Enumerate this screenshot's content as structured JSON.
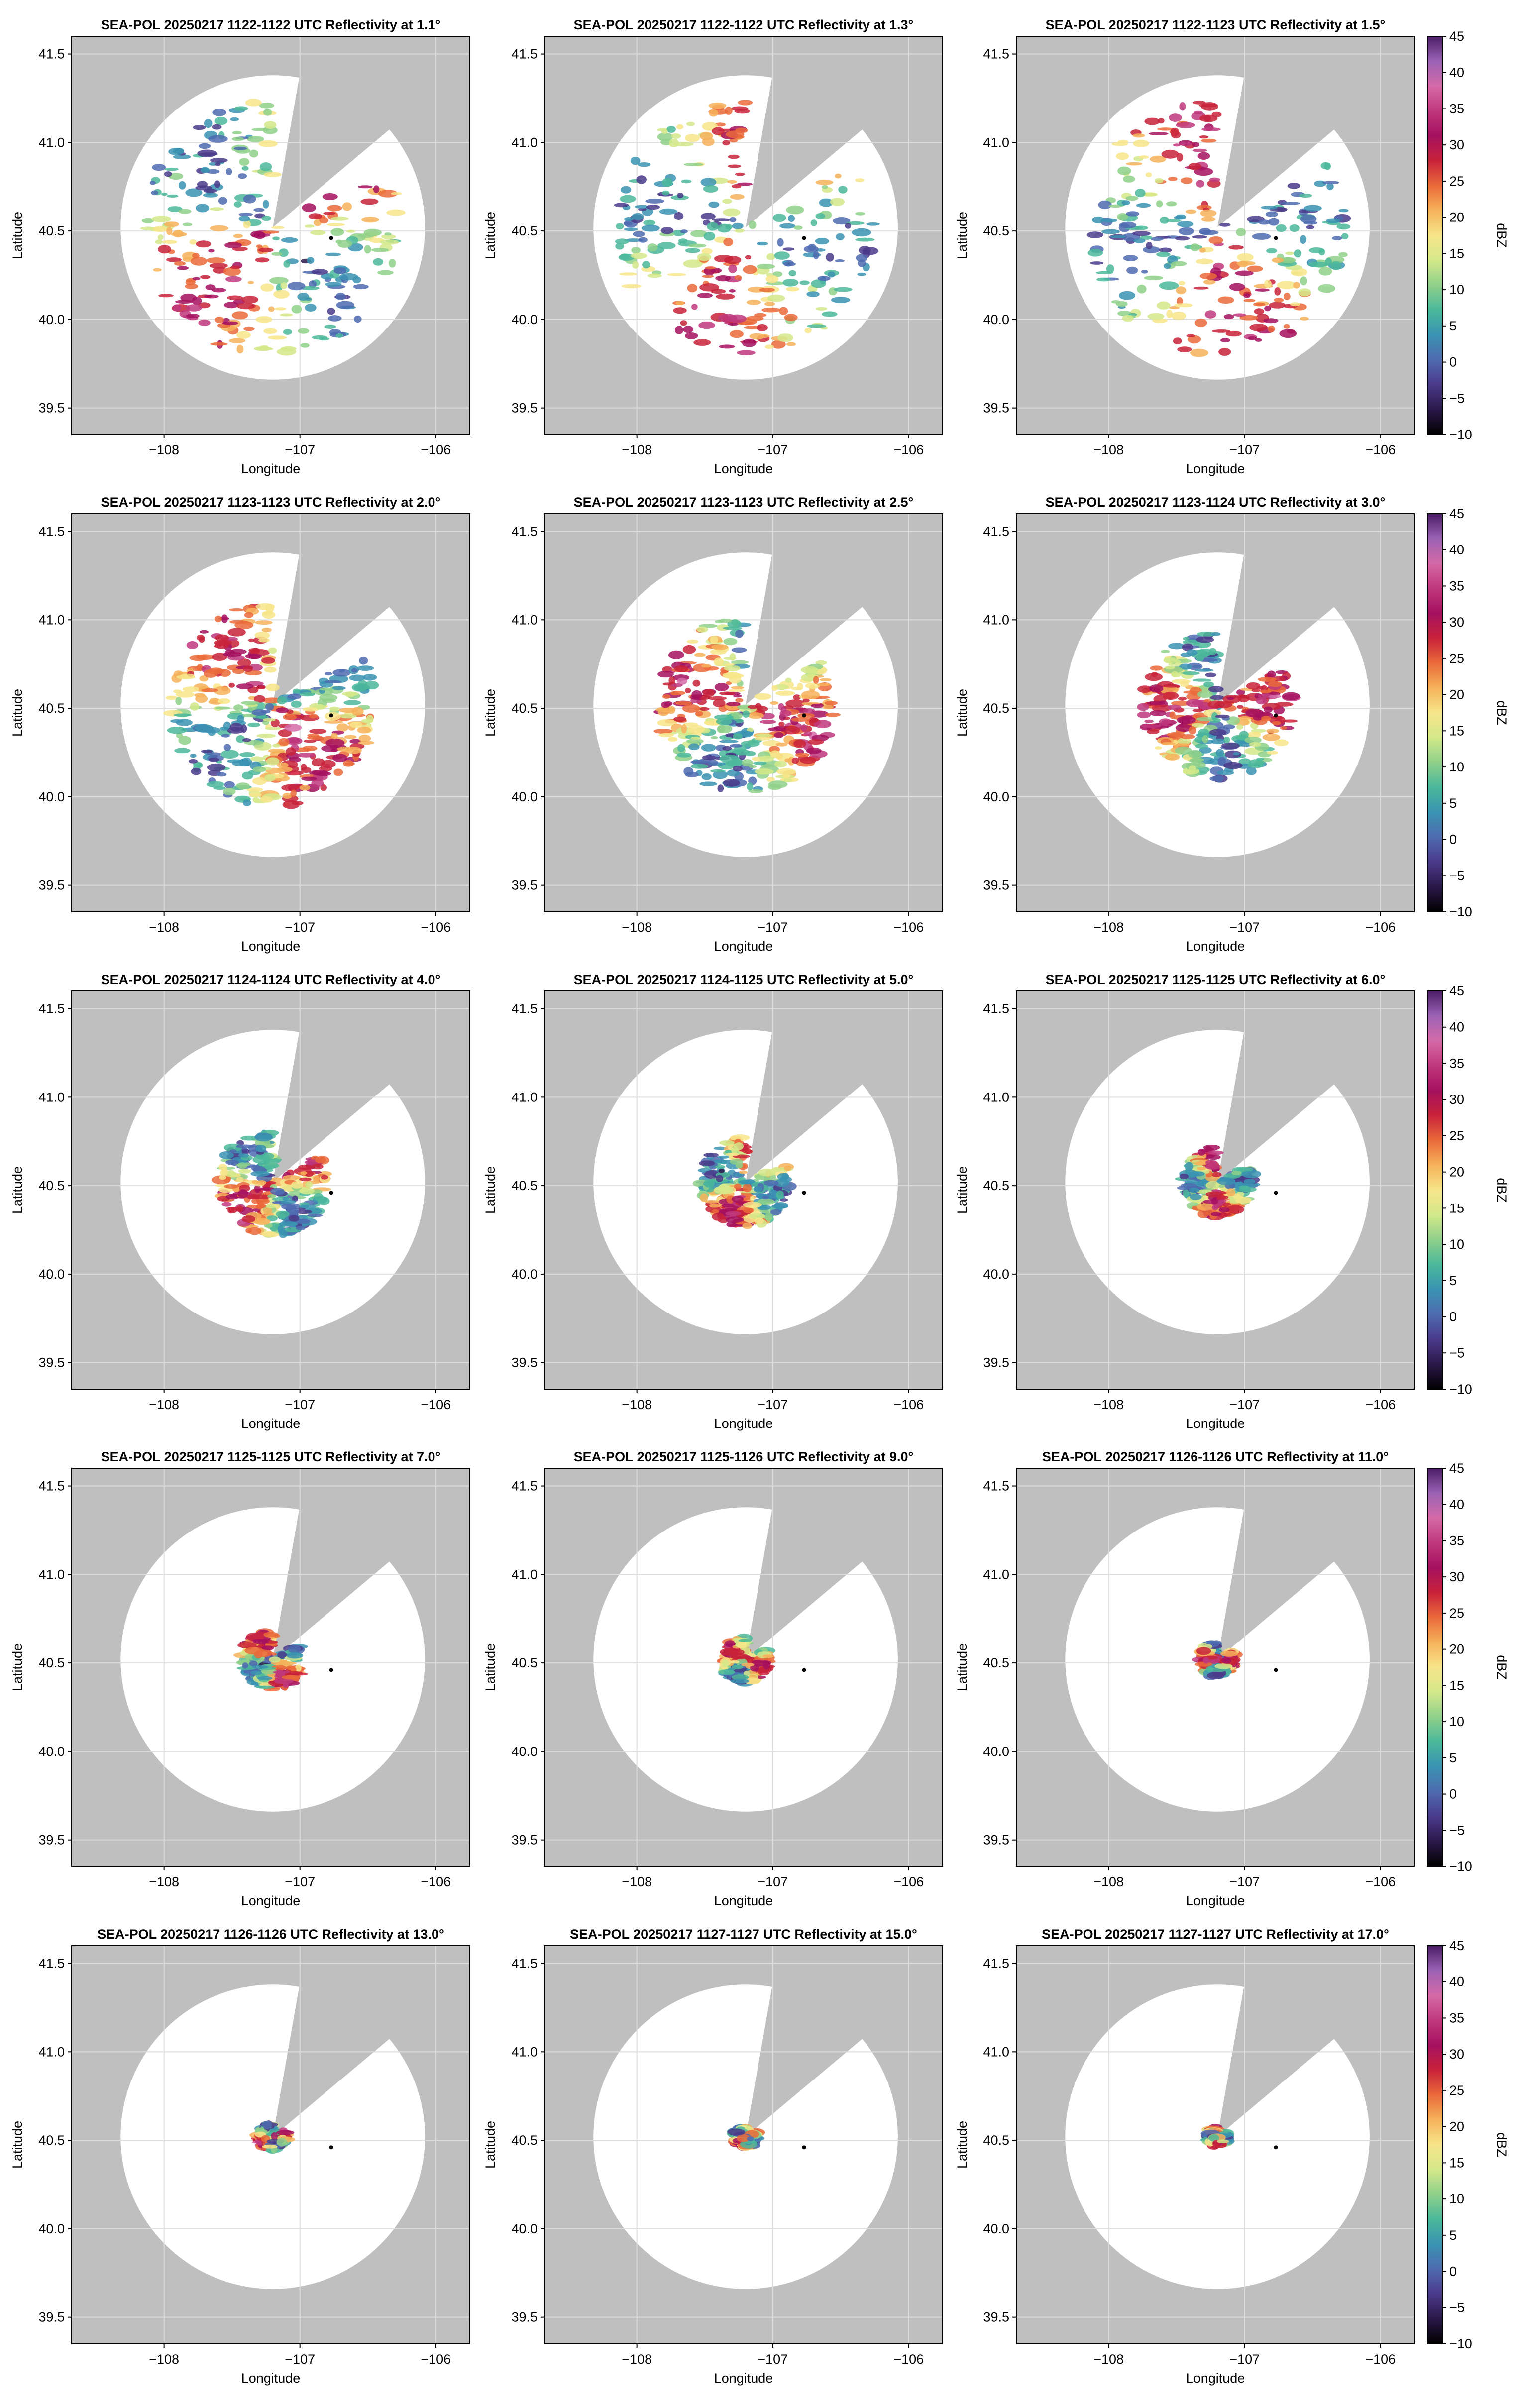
{
  "figure": {
    "colors": {
      "masked": "#bfbfbf",
      "scan_area": "#ffffff",
      "grid": "#dddddd",
      "frame": "#000000",
      "site_marker": "#000000"
    },
    "colorbar": {
      "label": "dBZ",
      "ticks": [
        "45",
        "40",
        "35",
        "30",
        "25",
        "20",
        "15",
        "10",
        "5",
        "0",
        "−5",
        "−10"
      ],
      "range": [
        -10,
        45
      ],
      "colors": [
        "#000000",
        "#2a1849",
        "#4a3a8a",
        "#4e6bb0",
        "#3a93b2",
        "#4bb89a",
        "#8fd08a",
        "#d4e98a",
        "#f7e58a",
        "#f6b25a",
        "#ea6a3a",
        "#c8223a",
        "#a5115f",
        "#c0387e",
        "#d46aa8",
        "#9b62b4",
        "#4a1d66"
      ]
    },
    "panels": [
      {
        "title": "SEA-POL 20250217 1122-1122 UTC Reflectivity at 1.1°",
        "elevation": 1.1
      },
      {
        "title": "SEA-POL 20250217 1122-1122 UTC Reflectivity at 1.3°",
        "elevation": 1.3
      },
      {
        "title": "SEA-POL 20250217 1122-1123 UTC Reflectivity at 1.5°",
        "elevation": 1.5
      },
      {
        "title": "SEA-POL 20250217 1123-1123 UTC Reflectivity at 2.0°",
        "elevation": 2.0
      },
      {
        "title": "SEA-POL 20250217 1123-1123 UTC Reflectivity at 2.5°",
        "elevation": 2.5
      },
      {
        "title": "SEA-POL 20250217 1123-1124 UTC Reflectivity at 3.0°",
        "elevation": 3.0
      },
      {
        "title": "SEA-POL 20250217 1124-1124 UTC Reflectivity at 4.0°",
        "elevation": 4.0
      },
      {
        "title": "SEA-POL 20250217 1124-1125 UTC Reflectivity at 5.0°",
        "elevation": 5.0
      },
      {
        "title": "SEA-POL 20250217 1125-1125 UTC Reflectivity at 6.0°",
        "elevation": 6.0
      },
      {
        "title": "SEA-POL 20250217 1125-1125 UTC Reflectivity at 7.0°",
        "elevation": 7.0
      },
      {
        "title": "SEA-POL 20250217 1125-1126 UTC Reflectivity at 9.0°",
        "elevation": 9.0
      },
      {
        "title": "SEA-POL 20250217 1126-1126 UTC Reflectivity at 11.0°",
        "elevation": 11.0
      },
      {
        "title": "SEA-POL 20250217 1126-1126 UTC Reflectivity at 13.0°",
        "elevation": 13.0
      },
      {
        "title": "SEA-POL 20250217 1127-1127 UTC Reflectivity at 15.0°",
        "elevation": 15.0
      },
      {
        "title": "SEA-POL 20250217 1127-1127 UTC Reflectivity at 17.0°",
        "elevation": 17.0
      }
    ]
  },
  "chart_data": {
    "type": "heatmap",
    "layout": "5 rows x 3 columns of radar PPI maps",
    "xlabel": "Longitude",
    "ylabel": "Latitude",
    "x_ticks": [
      "−108",
      "−107",
      "−106"
    ],
    "y_ticks": [
      "41.5",
      "41.0",
      "40.5",
      "40.0",
      "39.5"
    ],
    "x_tick_values": [
      -108,
      -107,
      -106
    ],
    "y_tick_values": [
      41.5,
      41.0,
      40.5,
      40.0,
      39.5
    ],
    "xlim": [
      -108.68,
      -105.75
    ],
    "ylim": [
      39.35,
      41.6
    ],
    "grid": true,
    "radar_location": {
      "lon": -107.2,
      "lat": 40.52
    },
    "site_marker": {
      "lon": -106.77,
      "lat": 40.46
    },
    "scan_extent_degrees": 1.12,
    "blocked_sectors_deg": [
      [
        10,
        50
      ]
    ],
    "colorbar_label": "dBZ",
    "colorbar_range": [
      -10,
      45
    ],
    "colorbar_ticks": [
      45,
      40,
      35,
      30,
      25,
      20,
      15,
      10,
      5,
      0,
      -5,
      -10
    ],
    "echo_extent_by_elevation": [
      {
        "elevation": 1.1,
        "max_range_deg": 0.95
      },
      {
        "elevation": 1.3,
        "max_range_deg": 0.95
      },
      {
        "elevation": 1.5,
        "max_range_deg": 0.95
      },
      {
        "elevation": 2.0,
        "max_range_deg": 0.75
      },
      {
        "elevation": 2.5,
        "max_range_deg": 0.65
      },
      {
        "elevation": 3.0,
        "max_range_deg": 0.55
      },
      {
        "elevation": 4.0,
        "max_range_deg": 0.4
      },
      {
        "elevation": 5.0,
        "max_range_deg": 0.33
      },
      {
        "elevation": 6.0,
        "max_range_deg": 0.26
      },
      {
        "elevation": 7.0,
        "max_range_deg": 0.22
      },
      {
        "elevation": 9.0,
        "max_range_deg": 0.17
      },
      {
        "elevation": 11.0,
        "max_range_deg": 0.13
      },
      {
        "elevation": 13.0,
        "max_range_deg": 0.1
      },
      {
        "elevation": 15.0,
        "max_range_deg": 0.08
      },
      {
        "elevation": 17.0,
        "max_range_deg": 0.07
      }
    ]
  }
}
